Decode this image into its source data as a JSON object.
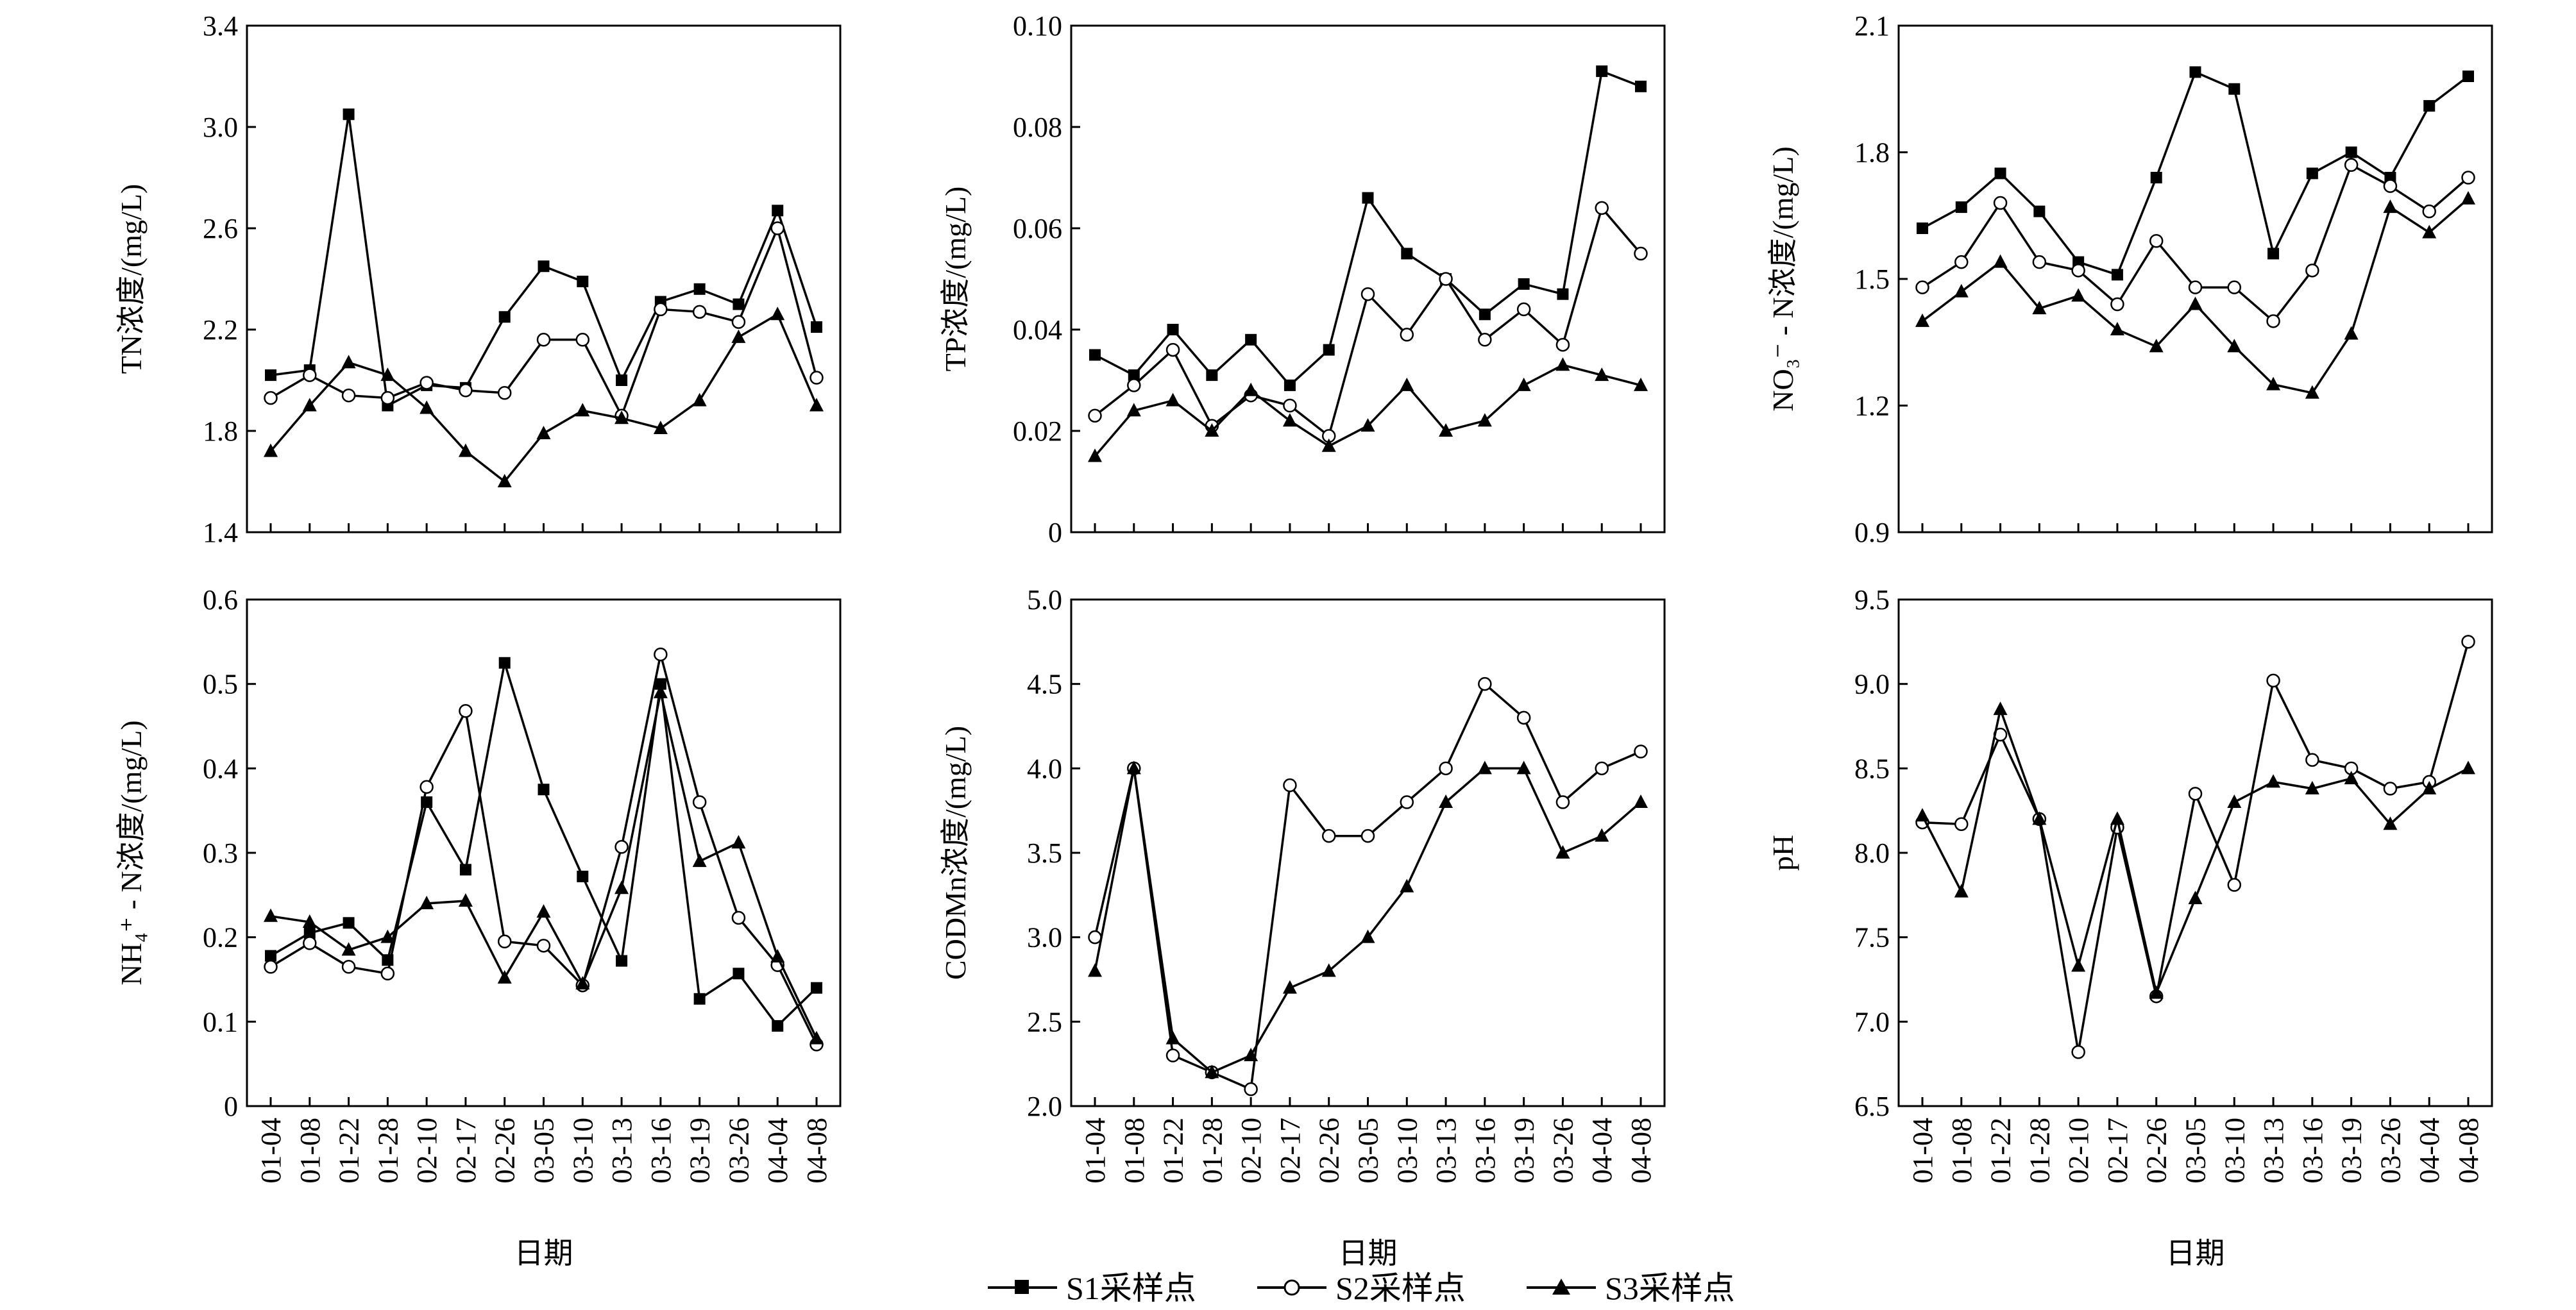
{
  "dates": [
    "01-04",
    "01-08",
    "01-22",
    "01-28",
    "02-10",
    "02-17",
    "02-26",
    "03-05",
    "03-10",
    "03-13",
    "03-16",
    "03-19",
    "03-26",
    "04-04",
    "04-08"
  ],
  "xlabel": "日期",
  "legend": [
    {
      "name": "S1采样点",
      "marker": "square"
    },
    {
      "name": "S2采样点",
      "marker": "circle-open"
    },
    {
      "name": "S3采样点",
      "marker": "triangle"
    }
  ],
  "chart_data": [
    {
      "type": "line",
      "ylabel": "TN浓度/(mg/L)",
      "ylim": [
        1.4,
        3.4
      ],
      "yticks": [
        "1.4",
        "1.8",
        "2.2",
        "2.6",
        "3.0",
        "3.4"
      ],
      "series": [
        {
          "name": "S1采样点",
          "values": [
            2.02,
            2.04,
            3.05,
            1.9,
            1.98,
            1.97,
            2.25,
            2.45,
            2.39,
            2.0,
            2.31,
            2.36,
            2.3,
            2.67,
            2.21
          ]
        },
        {
          "name": "S2采样点",
          "values": [
            1.93,
            2.02,
            1.94,
            1.93,
            1.99,
            1.96,
            1.95,
            2.16,
            2.16,
            1.86,
            2.28,
            2.27,
            2.23,
            2.6,
            2.01
          ]
        },
        {
          "name": "S3采样点",
          "values": [
            1.72,
            1.9,
            2.07,
            2.02,
            1.89,
            1.72,
            1.6,
            1.79,
            1.88,
            1.85,
            1.81,
            1.92,
            2.17,
            2.26,
            1.9
          ]
        }
      ]
    },
    {
      "type": "line",
      "ylabel": "TP浓度/(mg/L)",
      "ylim": [
        0,
        0.1
      ],
      "yticks": [
        "0",
        "0.02",
        "0.04",
        "0.06",
        "0.08",
        "0.10"
      ],
      "series": [
        {
          "name": "S1采样点",
          "values": [
            0.035,
            0.031,
            0.04,
            0.031,
            0.038,
            0.029,
            0.036,
            0.066,
            0.055,
            0.05,
            0.043,
            0.049,
            0.047,
            0.091,
            0.088
          ]
        },
        {
          "name": "S2采样点",
          "values": [
            0.023,
            0.029,
            0.036,
            0.021,
            0.027,
            0.025,
            0.019,
            0.047,
            0.039,
            0.05,
            0.038,
            0.044,
            0.037,
            0.064,
            0.055
          ]
        },
        {
          "name": "S3采样点",
          "values": [
            0.015,
            0.024,
            0.026,
            0.02,
            0.028,
            0.022,
            0.017,
            0.021,
            0.029,
            0.02,
            0.022,
            0.029,
            0.033,
            0.031,
            0.029
          ]
        }
      ]
    },
    {
      "type": "line",
      "ylabel": "NO₃⁻ - N浓度/(mg/L)",
      "ylim": [
        0.9,
        2.1
      ],
      "yticks": [
        "0.9",
        "1.2",
        "1.5",
        "1.8",
        "2.1"
      ],
      "series": [
        {
          "name": "S1采样点",
          "values": [
            1.62,
            1.67,
            1.75,
            1.66,
            1.54,
            1.51,
            1.74,
            1.99,
            1.95,
            1.56,
            1.75,
            1.8,
            1.74,
            1.91,
            1.98
          ]
        },
        {
          "name": "S2采样点",
          "values": [
            1.48,
            1.54,
            1.68,
            1.54,
            1.52,
            1.44,
            1.59,
            1.48,
            1.48,
            1.4,
            1.52,
            1.77,
            1.72,
            1.66,
            1.74
          ]
        },
        {
          "name": "S3采样点",
          "values": [
            1.4,
            1.47,
            1.54,
            1.43,
            1.46,
            1.38,
            1.34,
            1.44,
            1.34,
            1.25,
            1.23,
            1.37,
            1.67,
            1.61,
            1.69
          ]
        }
      ]
    },
    {
      "type": "line",
      "ylabel": "NH₄⁺ - N浓度/(mg/L)",
      "ylim": [
        0,
        0.6
      ],
      "yticks": [
        "0",
        "0.1",
        "0.2",
        "0.3",
        "0.4",
        "0.5",
        "0.6"
      ],
      "series": [
        {
          "name": "S1采样点",
          "values": [
            0.178,
            0.205,
            0.217,
            0.173,
            0.36,
            0.28,
            0.525,
            0.375,
            0.272,
            0.172,
            0.5,
            0.127,
            0.157,
            0.095,
            0.14
          ]
        },
        {
          "name": "S2采样点",
          "values": [
            0.165,
            0.193,
            0.165,
            0.157,
            0.378,
            0.468,
            0.195,
            0.19,
            0.143,
            0.307,
            0.535,
            0.36,
            0.223,
            0.167,
            0.073
          ]
        },
        {
          "name": "S3采样点",
          "values": [
            0.225,
            0.218,
            0.185,
            0.2,
            0.24,
            0.243,
            0.152,
            0.23,
            0.145,
            0.258,
            0.49,
            0.29,
            0.312,
            0.177,
            0.08
          ]
        }
      ]
    },
    {
      "type": "line",
      "ylabel": "CODMn浓度/(mg/L)",
      "ylim": [
        2.0,
        5.0
      ],
      "yticks": [
        "2.0",
        "2.5",
        "3.0",
        "3.5",
        "4.0",
        "4.5",
        "5.0"
      ],
      "series": [
        {
          "name": "S1采样点",
          "values": []
        },
        {
          "name": "S2采样点",
          "values": [
            3.0,
            4.0,
            2.3,
            2.2,
            2.1,
            3.9,
            3.6,
            3.6,
            3.8,
            4.0,
            4.5,
            4.3,
            3.8,
            4.0,
            4.1
          ]
        },
        {
          "name": "S3采样点",
          "values": [
            2.8,
            4.0,
            2.4,
            2.2,
            2.3,
            2.7,
            2.8,
            3.0,
            3.3,
            3.8,
            4.0,
            4.0,
            3.5,
            3.6,
            3.8
          ]
        }
      ]
    },
    {
      "type": "line",
      "ylabel": "pH",
      "ylim": [
        6.5,
        9.5
      ],
      "yticks": [
        "6.5",
        "7.0",
        "7.5",
        "8.0",
        "8.5",
        "9.0",
        "9.5"
      ],
      "series": [
        {
          "name": "S1采样点",
          "values": []
        },
        {
          "name": "S2采样点",
          "values": [
            8.18,
            8.17,
            8.7,
            8.2,
            6.82,
            8.15,
            7.15,
            8.35,
            7.81,
            9.02,
            8.55,
            8.5,
            8.38,
            8.42,
            9.25
          ]
        },
        {
          "name": "S3采样点",
          "values": [
            8.22,
            7.77,
            8.85,
            8.2,
            7.33,
            8.2,
            7.17,
            7.73,
            8.3,
            8.42,
            8.38,
            8.44,
            8.17,
            8.38,
            8.5
          ]
        }
      ]
    }
  ]
}
